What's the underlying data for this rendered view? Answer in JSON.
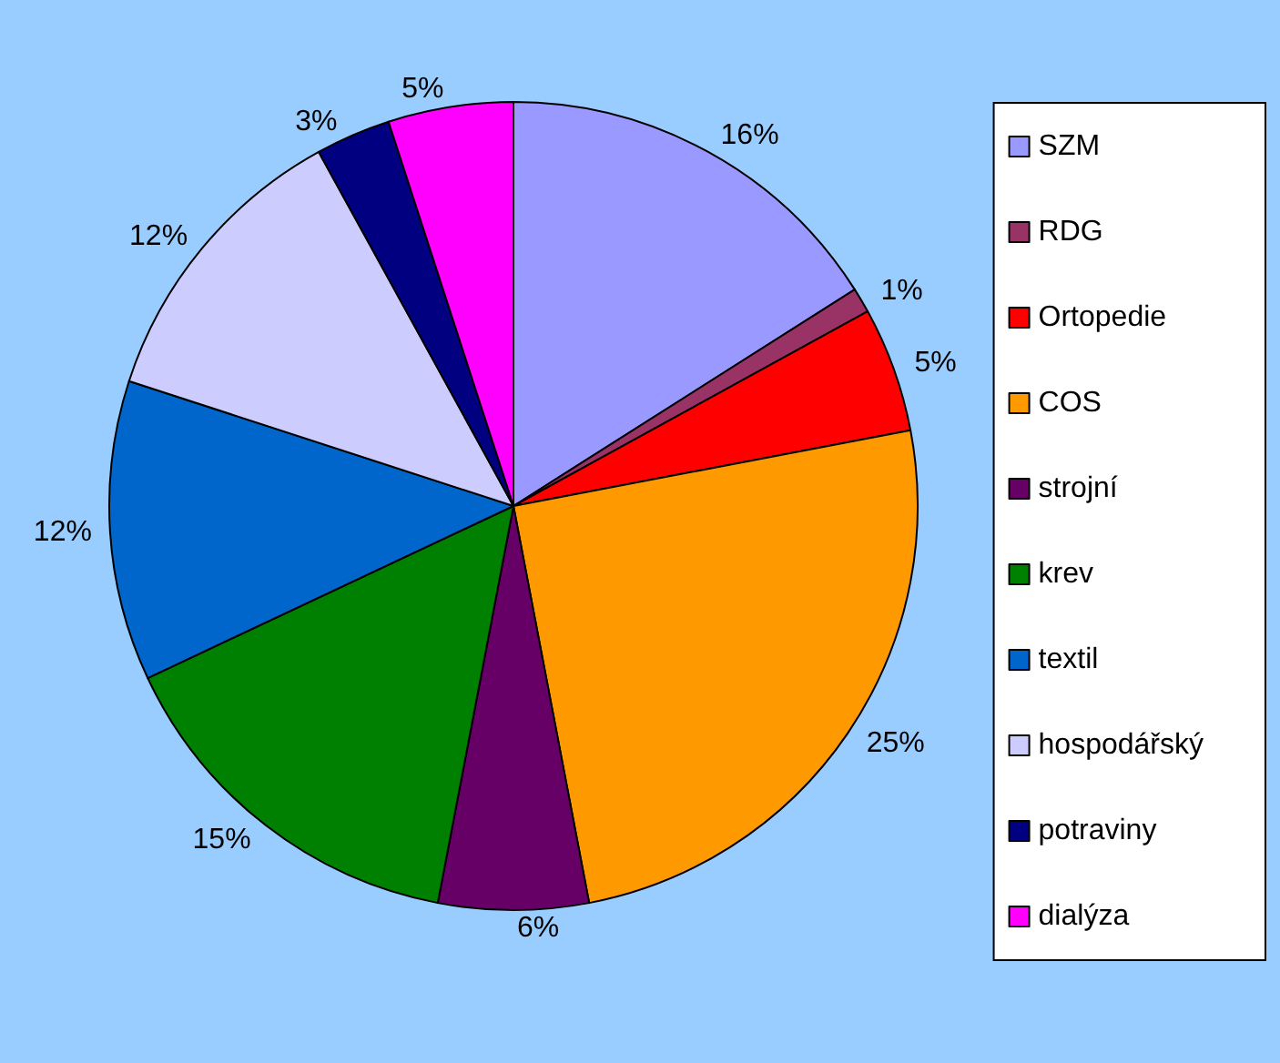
{
  "chart_data": {
    "type": "pie",
    "categories": [
      "SZM",
      "RDG",
      "Ortopedie",
      "COS",
      "strojní",
      "krev",
      "textil",
      "hospodářský",
      "potraviny",
      "dialýza"
    ],
    "values": [
      16,
      1,
      5,
      25,
      6,
      15,
      12,
      12,
      3,
      5
    ],
    "colors": [
      "#9999ff",
      "#993366",
      "#ff0000",
      "#ff9900",
      "#660066",
      "#008000",
      "#0066cc",
      "#ccccff",
      "#000080",
      "#ff00ff"
    ],
    "value_labels": [
      "16%",
      "1%",
      "5%",
      "25%",
      "6%",
      "15%",
      "12%",
      "12%",
      "3%",
      "5%"
    ],
    "legend": "right"
  }
}
